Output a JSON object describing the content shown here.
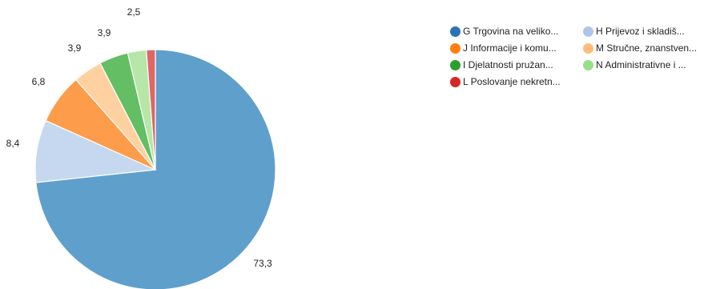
{
  "chart_data": {
    "type": "pie",
    "title": "",
    "start_angle_deg": 0,
    "direction": "clockwise",
    "slices": [
      {
        "name": "G Trgovina na veliko...",
        "value": 73.3,
        "label": "73,3",
        "color": "#5f9fcc",
        "legend_color": "#2a74b4"
      },
      {
        "name": "H Prijevoz i skladiš...",
        "value": 8.4,
        "label": "8,4",
        "color": "#c6d8ef",
        "legend_color": "#aec7e8"
      },
      {
        "name": "J Informacije i komu...",
        "value": 6.8,
        "label": "6,8",
        "color": "#fd9c4a",
        "legend_color": "#ff7f0e"
      },
      {
        "name": "M Stručne, znanstven...",
        "value": 3.9,
        "label": "3,9",
        "color": "#ffd1a1",
        "legend_color": "#ffbb78"
      },
      {
        "name": "I Djelatnosti pružan...",
        "value": 3.9,
        "label": "3,9",
        "color": "#64be64",
        "legend_color": "#2ca02c"
      },
      {
        "name": "N Administrativne i ...",
        "value": 2.5,
        "label": "2,5",
        "color": "#b6e6a8",
        "legend_color": "#98df8a"
      },
      {
        "name": "L Poslovanje nekretn...",
        "value": 1.2,
        "label": "",
        "color": "#e06666",
        "legend_color": "#d62728"
      }
    ],
    "legend_position": "top-right"
  }
}
